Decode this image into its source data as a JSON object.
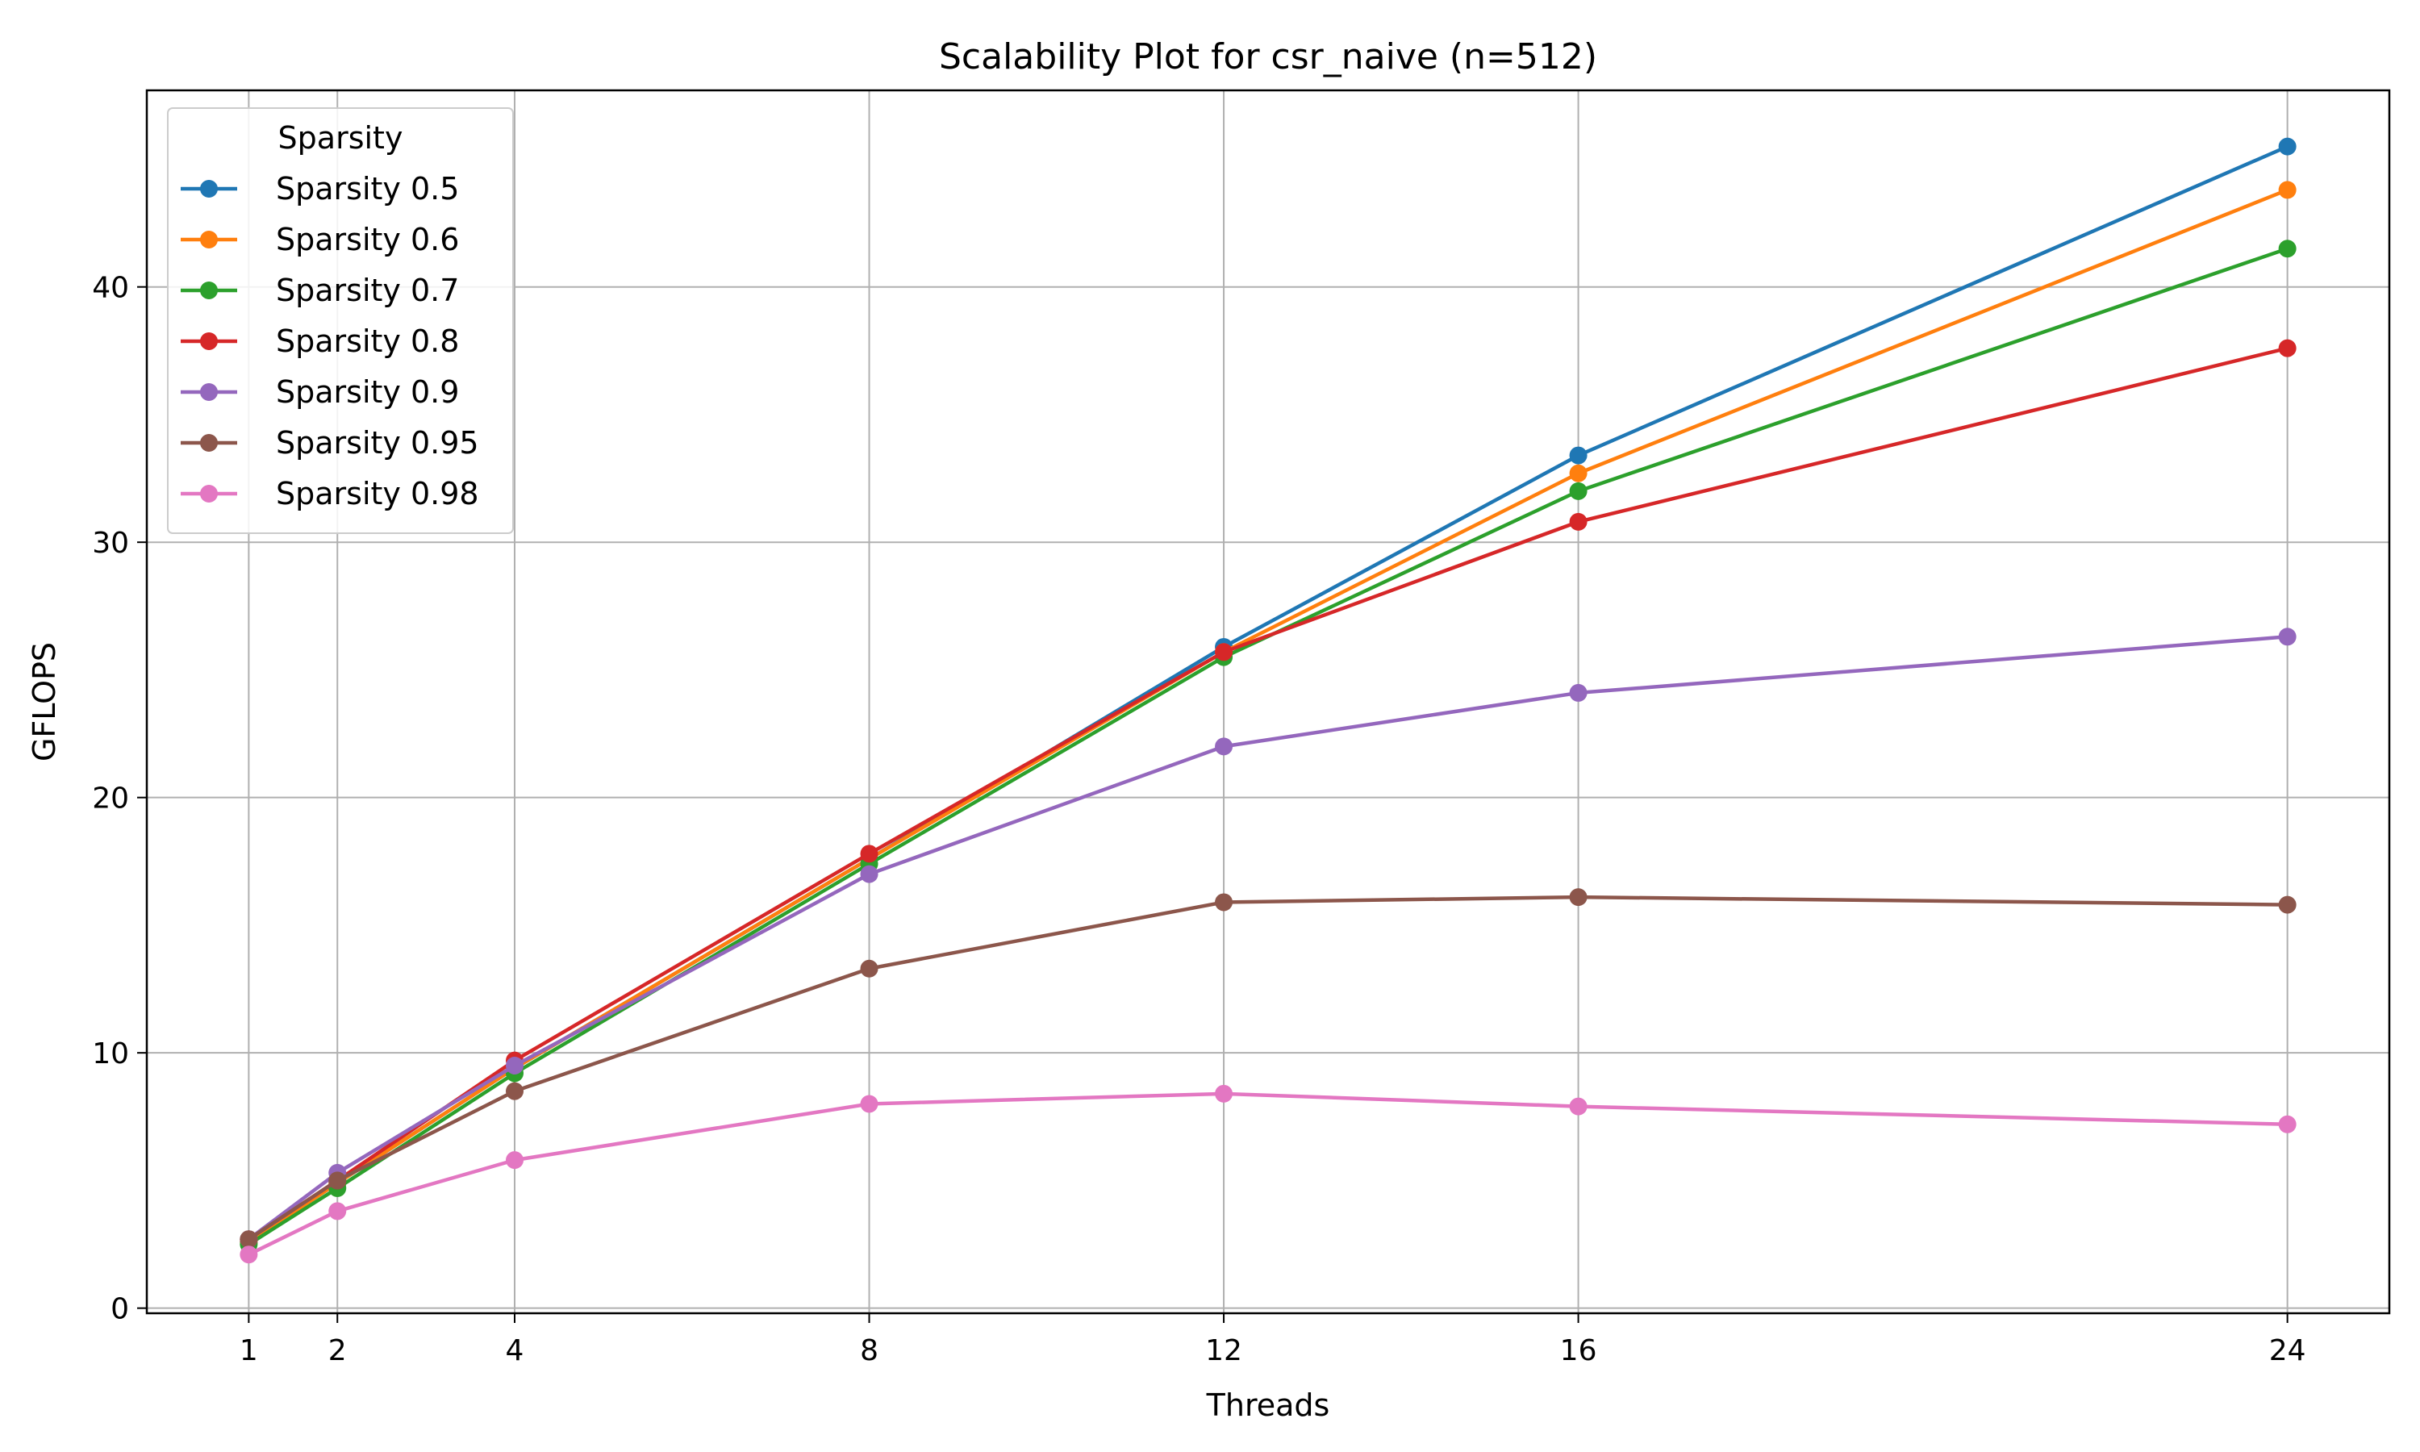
{
  "chart_data": {
    "type": "line",
    "title": "Scalability Plot for csr_naive (n=512)",
    "xlabel": "Threads",
    "ylabel": "GFLOPS",
    "x": [
      1,
      2,
      4,
      8,
      12,
      16,
      24
    ],
    "xticks": [
      "1",
      "2",
      "4",
      "8",
      "12",
      "16",
      "24"
    ],
    "yticks": [
      "0",
      "10",
      "20",
      "30",
      "40"
    ],
    "ytick_values": [
      0,
      10,
      20,
      30,
      40
    ],
    "xlim": [
      -0.15,
      25.15
    ],
    "ylim": [
      -0.2,
      47.7
    ],
    "grid": true,
    "legend": {
      "title": "Sparsity",
      "placement": "top-left"
    },
    "series": [
      {
        "name": "Sparsity 0.5",
        "color": "#1f77b4",
        "values": [
          2.6,
          4.9,
          9.4,
          17.6,
          25.9,
          33.4,
          45.5
        ]
      },
      {
        "name": "Sparsity 0.6",
        "color": "#ff7f0e",
        "values": [
          2.6,
          4.9,
          9.4,
          17.6,
          25.7,
          32.7,
          43.8
        ]
      },
      {
        "name": "Sparsity 0.7",
        "color": "#2ca02c",
        "values": [
          2.5,
          4.7,
          9.2,
          17.4,
          25.5,
          32.0,
          41.5
        ]
      },
      {
        "name": "Sparsity 0.8",
        "color": "#d62728",
        "values": [
          2.7,
          5.0,
          9.7,
          17.8,
          25.7,
          30.8,
          37.6
        ]
      },
      {
        "name": "Sparsity 0.9",
        "color": "#9467bd",
        "values": [
          2.7,
          5.3,
          9.5,
          17.0,
          22.0,
          24.1,
          26.3
        ]
      },
      {
        "name": "Sparsity 0.95",
        "color": "#8c564b",
        "values": [
          2.7,
          5.0,
          8.5,
          13.3,
          15.9,
          16.1,
          15.8
        ]
      },
      {
        "name": "Sparsity 0.98",
        "color": "#e377c2",
        "values": [
          2.1,
          3.8,
          5.8,
          8.0,
          8.4,
          7.9,
          7.2
        ]
      }
    ]
  }
}
